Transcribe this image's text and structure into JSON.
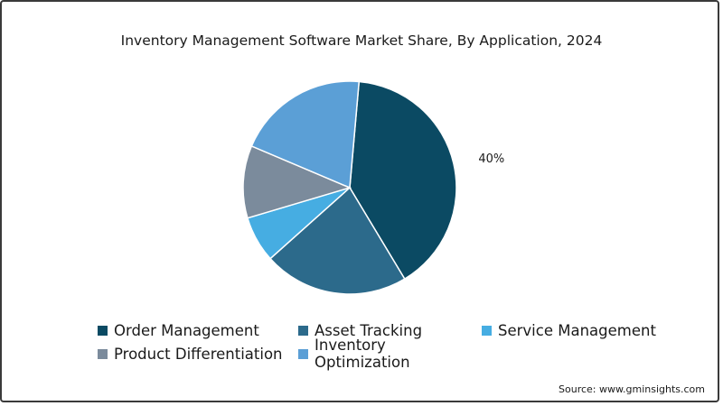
{
  "title": "Inventory Management Software Market Share, By Application, 2024",
  "source": "Source: www.gminsights.com",
  "chart_data": {
    "type": "pie",
    "title": "Inventory Management Software Market Share, By Application, 2024",
    "legend_position": "bottom",
    "start_angle_deg": 5,
    "direction": "clockwise",
    "slices": [
      {
        "name": "Order Management",
        "value": 40,
        "color": "#0b4a63",
        "label": "40%"
      },
      {
        "name": "Asset Tracking",
        "value": 22,
        "color": "#2c6a8b",
        "label": ""
      },
      {
        "name": "Service Management",
        "value": 7,
        "color": "#46ade2",
        "label": ""
      },
      {
        "name": "Product Differentiation",
        "value": 11,
        "color": "#7b8b9c",
        "label": ""
      },
      {
        "name": "Inventory Optimization",
        "value": 20,
        "color": "#5b9fd6",
        "label": ""
      }
    ]
  },
  "legend": {
    "items": [
      {
        "label": "Order Management",
        "color": "#0b4a63"
      },
      {
        "label": "Asset Tracking",
        "color": "#2c6a8b"
      },
      {
        "label": "Service Management",
        "color": "#46ade2"
      },
      {
        "label": "Product Differentiation",
        "color": "#7b8b9c"
      },
      {
        "label": "Inventory Optimization",
        "color": "#5b9fd6"
      }
    ]
  }
}
